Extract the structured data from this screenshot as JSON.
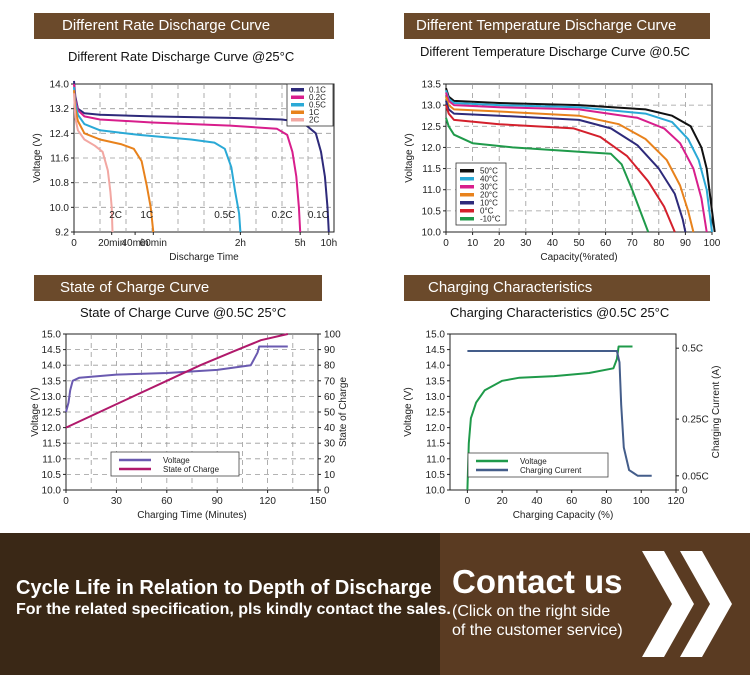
{
  "colors": {
    "header_bg": "#6b4a2b",
    "grid": "#9a9a9a",
    "footer_bg": "#5a3b22",
    "footer_dark": "#3a2816"
  },
  "panels": {
    "rate": {
      "header": "Different Rate Discharge Curve",
      "title": "Different Rate Discharge Curve @25°C"
    },
    "temp": {
      "header": "Different Temperature Discharge Curve",
      "title": "Different Temperature Discharge Curve @0.5C"
    },
    "soc": {
      "header": "State of Charge Curve",
      "title": "State of Charge Curve @0.5C 25°C"
    },
    "charge": {
      "header": "Charging Characteristics",
      "title": "Charging Characteristics @0.5C 25°C"
    }
  },
  "chart_data": [
    {
      "type": "line",
      "title": "Different Rate Discharge Curve @25°C",
      "xlabel": "Discharge Time",
      "ylabel": "Voltage (V)",
      "ylim": [
        9.2,
        14.0
      ],
      "yticks": [
        "14.0",
        "13.2",
        "12.4",
        "11.6",
        "10.8",
        "10.0",
        "9.2"
      ],
      "yticks_values": [
        14.0,
        13.2,
        12.4,
        11.6,
        10.8,
        10.0,
        9.2
      ],
      "xticks": [
        "0",
        "20min",
        "40min",
        "60min",
        "2h",
        "5h",
        "10h"
      ],
      "xlim": [
        0,
        100
      ],
      "xticks_values": [
        0,
        14.5,
        23.5,
        30.5,
        64,
        87,
        98
      ],
      "curve_labels": [
        {
          "text": "2C",
          "x": 16,
          "y": 9.65
        },
        {
          "text": "1C",
          "x": 28,
          "y": 9.65
        },
        {
          "text": "0.5C",
          "x": 58,
          "y": 9.65
        },
        {
          "text": "0.2C",
          "x": 80,
          "y": 9.65
        },
        {
          "text": "0.1C",
          "x": 94,
          "y": 9.65
        }
      ],
      "series": [
        {
          "name": "0.1C",
          "color": "#2e2a7a",
          "points": [
            [
              0,
              14.1
            ],
            [
              0.5,
              13.6
            ],
            [
              1.5,
              13.2
            ],
            [
              4,
              13.05
            ],
            [
              10,
              13.0
            ],
            [
              30,
              12.95
            ],
            [
              60,
              12.9
            ],
            [
              80,
              12.85
            ],
            [
              88,
              12.75
            ],
            [
              93,
              12.4
            ],
            [
              95,
              11.8
            ],
            [
              96.5,
              11.0
            ],
            [
              97.5,
              10.0
            ],
            [
              98,
              9.2
            ]
          ]
        },
        {
          "name": "0.2C",
          "color": "#d81e8c",
          "points": [
            [
              0,
              14.0
            ],
            [
              0.5,
              13.5
            ],
            [
              1.5,
              13.15
            ],
            [
              4,
              12.95
            ],
            [
              10,
              12.85
            ],
            [
              30,
              12.75
            ],
            [
              60,
              12.65
            ],
            [
              78,
              12.55
            ],
            [
              82,
              12.35
            ],
            [
              84,
              11.8
            ],
            [
              85.5,
              11.0
            ],
            [
              86.5,
              10.0
            ],
            [
              87,
              9.2
            ]
          ]
        },
        {
          "name": "0.5C",
          "color": "#2aa9d6",
          "points": [
            [
              0,
              13.9
            ],
            [
              0.5,
              13.4
            ],
            [
              1.5,
              13.0
            ],
            [
              4,
              12.7
            ],
            [
              10,
              12.5
            ],
            [
              25,
              12.35
            ],
            [
              45,
              12.2
            ],
            [
              54,
              12.1
            ],
            [
              58,
              11.9
            ],
            [
              60.5,
              11.3
            ],
            [
              62,
              10.5
            ],
            [
              63.5,
              9.8
            ],
            [
              64,
              9.2
            ]
          ]
        },
        {
          "name": "1C",
          "color": "#e8821c",
          "points": [
            [
              0,
              13.8
            ],
            [
              0.5,
              13.2
            ],
            [
              1.5,
              12.8
            ],
            [
              4,
              12.4
            ],
            [
              10,
              12.2
            ],
            [
              18,
              12.05
            ],
            [
              23,
              11.9
            ],
            [
              26,
              11.5
            ],
            [
              28,
              10.7
            ],
            [
              29.5,
              10.0
            ],
            [
              30.5,
              9.2
            ]
          ]
        },
        {
          "name": "2C",
          "color": "#f2a7a2",
          "points": [
            [
              0,
              13.7
            ],
            [
              0.5,
              12.9
            ],
            [
              1.5,
              12.5
            ],
            [
              4,
              12.2
            ],
            [
              8,
              12.0
            ],
            [
              11,
              11.8
            ],
            [
              13,
              11.2
            ],
            [
              14,
              10.5
            ],
            [
              14.5,
              10.0
            ],
            [
              14.8,
              9.2
            ]
          ]
        }
      ]
    },
    {
      "type": "line",
      "title": "Different Temperature Discharge Curve @0.5C",
      "xlabel": "Capacity(%rated)",
      "ylabel": "Voltage (V)",
      "ylim": [
        10.0,
        13.5
      ],
      "xlim": [
        0,
        100
      ],
      "yticks": [
        "13.5",
        "13.0",
        "12.5",
        "12.0",
        "11.5",
        "11.0",
        "10.5",
        "10.0"
      ],
      "yticks_values": [
        13.5,
        13.0,
        12.5,
        12.0,
        11.5,
        11.0,
        10.5,
        10.0
      ],
      "xticks": [
        "0",
        "10",
        "20",
        "30",
        "40",
        "50",
        "60",
        "70",
        "80",
        "90",
        "100"
      ],
      "xticks_values": [
        0,
        10,
        20,
        30,
        40,
        50,
        60,
        70,
        80,
        90,
        100
      ],
      "series": [
        {
          "name": "50°C",
          "color": "#111111",
          "points": [
            [
              0,
              13.4
            ],
            [
              1,
              13.2
            ],
            [
              3,
              13.1
            ],
            [
              20,
              13.05
            ],
            [
              50,
              13.0
            ],
            [
              75,
              12.9
            ],
            [
              85,
              12.75
            ],
            [
              92,
              12.5
            ],
            [
              96,
              12.0
            ],
            [
              98,
              11.5
            ],
            [
              100,
              10.5
            ],
            [
              101,
              10.0
            ]
          ]
        },
        {
          "name": "40°C",
          "color": "#2aa9d6",
          "points": [
            [
              0,
              13.35
            ],
            [
              1,
              13.15
            ],
            [
              3,
              13.05
            ],
            [
              20,
              13.0
            ],
            [
              50,
              12.95
            ],
            [
              75,
              12.8
            ],
            [
              85,
              12.6
            ],
            [
              91,
              12.2
            ],
            [
              95,
              11.7
            ],
            [
              98,
              11.0
            ],
            [
              100,
              10.0
            ]
          ]
        },
        {
          "name": "30°C",
          "color": "#d81e8c",
          "points": [
            [
              0,
              13.3
            ],
            [
              1,
              13.1
            ],
            [
              3,
              13.0
            ],
            [
              20,
              12.95
            ],
            [
              50,
              12.9
            ],
            [
              72,
              12.7
            ],
            [
              82,
              12.45
            ],
            [
              88,
              12.1
            ],
            [
              93,
              11.5
            ],
            [
              96,
              10.8
            ],
            [
              98,
              10.0
            ]
          ]
        },
        {
          "name": "20°C",
          "color": "#e8821c",
          "points": [
            [
              0,
              13.2
            ],
            [
              1,
              13.0
            ],
            [
              3,
              12.9
            ],
            [
              20,
              12.85
            ],
            [
              50,
              12.75
            ],
            [
              65,
              12.55
            ],
            [
              75,
              12.2
            ],
            [
              83,
              11.7
            ],
            [
              88,
              11.1
            ],
            [
              91,
              10.5
            ],
            [
              93,
              10.0
            ]
          ]
        },
        {
          "name": "10°C",
          "color": "#2e2a7a",
          "points": [
            [
              0,
              13.1
            ],
            [
              1,
              12.9
            ],
            [
              3,
              12.8
            ],
            [
              20,
              12.75
            ],
            [
              50,
              12.65
            ],
            [
              62,
              12.45
            ],
            [
              72,
              12.05
            ],
            [
              80,
              11.5
            ],
            [
              86,
              10.9
            ],
            [
              89,
              10.3
            ],
            [
              90,
              10.0
            ]
          ]
        },
        {
          "name": "0°C",
          "color": "#d4202c",
          "points": [
            [
              0,
              13.0
            ],
            [
              1,
              12.8
            ],
            [
              3,
              12.65
            ],
            [
              20,
              12.55
            ],
            [
              48,
              12.45
            ],
            [
              58,
              12.25
            ],
            [
              68,
              11.8
            ],
            [
              76,
              11.2
            ],
            [
              82,
              10.6
            ],
            [
              86,
              10.0
            ]
          ]
        },
        {
          "name": "-10°C",
          "color": "#1f9a4a",
          "points": [
            [
              0,
              12.7
            ],
            [
              1,
              12.5
            ],
            [
              3,
              12.3
            ],
            [
              10,
              12.1
            ],
            [
              25,
              12.0
            ],
            [
              50,
              11.9
            ],
            [
              62,
              11.85
            ],
            [
              66,
              11.6
            ],
            [
              70,
              11.0
            ],
            [
              73,
              10.5
            ],
            [
              76,
              10.0
            ]
          ]
        }
      ]
    },
    {
      "type": "line",
      "title": "State of Charge Curve @0.5C 25°C",
      "xlabel": "Charging Time (Minutes)",
      "ylabel": "Voltage (V)",
      "y2label": "State of Charge",
      "ylim": [
        10.0,
        15.0
      ],
      "y2lim": [
        0,
        100
      ],
      "xlim": [
        0,
        150
      ],
      "yticks": [
        "15.0",
        "14.5",
        "14.0",
        "13.5",
        "13.0",
        "12.5",
        "12.0",
        "11.5",
        "11.0",
        "10.5",
        "10.0"
      ],
      "yticks_values": [
        15.0,
        14.5,
        14.0,
        13.5,
        13.0,
        12.5,
        12.0,
        11.5,
        11.0,
        10.5,
        10.0
      ],
      "y2ticks": [
        "100",
        "90",
        "80",
        "70",
        "60",
        "50",
        "40",
        "30",
        "20",
        "10",
        "0"
      ],
      "y2ticks_values": [
        100,
        90,
        80,
        70,
        60,
        50,
        40,
        30,
        20,
        10,
        0
      ],
      "xticks": [
        "0",
        "30",
        "60",
        "90",
        "120",
        "150"
      ],
      "xticks_values": [
        0,
        30,
        60,
        90,
        120,
        150
      ],
      "legend": [
        "Voltage",
        "State of Charge"
      ],
      "series": [
        {
          "name": "Voltage",
          "color": "#6a5ab0",
          "axis": "left",
          "points": [
            [
              0,
              12.5
            ],
            [
              1.5,
              12.8
            ],
            [
              2.5,
              13.2
            ],
            [
              4,
              13.5
            ],
            [
              8,
              13.6
            ],
            [
              30,
              13.7
            ],
            [
              60,
              13.75
            ],
            [
              90,
              13.85
            ],
            [
              110,
              14.0
            ],
            [
              114,
              14.4
            ],
            [
              115,
              14.6
            ],
            [
              132,
              14.6
            ]
          ]
        },
        {
          "name": "State of Charge",
          "color": "#b0196b",
          "axis": "right",
          "points": [
            [
              0,
              40
            ],
            [
              20,
              50
            ],
            [
              40,
              60
            ],
            [
              60,
              70
            ],
            [
              80,
              80
            ],
            [
              100,
              89
            ],
            [
              116,
              96
            ],
            [
              132,
              100
            ]
          ]
        }
      ]
    },
    {
      "type": "line",
      "title": "Charging Characteristics @0.5C 25°C",
      "xlabel": "Charging Capacity (%)",
      "ylabel": "Voltage (V)",
      "y2label": "Charging Current (A)",
      "ylim": [
        10.0,
        15.0
      ],
      "xlim": [
        -10,
        120
      ],
      "y2lim": [
        0,
        0.55
      ],
      "yticks": [
        "15.0",
        "14.5",
        "14.0",
        "13.5",
        "13.0",
        "12.5",
        "12.0",
        "11.5",
        "11.0",
        "10.5",
        "10.0"
      ],
      "yticks_values": [
        15.0,
        14.5,
        14.0,
        13.5,
        13.0,
        12.5,
        12.0,
        11.5,
        11.0,
        10.5,
        10.0
      ],
      "y2ticks": [
        "0.5C",
        "0.25C",
        "0.05C",
        "0"
      ],
      "y2ticks_values": [
        0.5,
        0.25,
        0.05,
        0
      ],
      "xticks": [
        "0",
        "20",
        "40",
        "60",
        "80",
        "100",
        "120"
      ],
      "xticks_values": [
        0,
        20,
        40,
        60,
        80,
        100,
        120
      ],
      "legend": [
        "Voltage",
        "Charging Current"
      ],
      "series": [
        {
          "name": "Voltage",
          "color": "#1f9a4a",
          "axis": "left",
          "points": [
            [
              0,
              10.0
            ],
            [
              0.8,
              11.5
            ],
            [
              2,
              12.3
            ],
            [
              5,
              12.8
            ],
            [
              10,
              13.2
            ],
            [
              20,
              13.5
            ],
            [
              30,
              13.6
            ],
            [
              50,
              13.65
            ],
            [
              70,
              13.75
            ],
            [
              84,
              13.9
            ],
            [
              86,
              14.2
            ],
            [
              87,
              14.6
            ],
            [
              95,
              14.6
            ]
          ]
        },
        {
          "name": "Charging Current",
          "color": "#445d8a",
          "axis": "right",
          "points": [
            [
              0,
              0.49
            ],
            [
              60,
              0.49
            ],
            [
              86,
              0.49
            ],
            [
              87.5,
              0.45
            ],
            [
              88.5,
              0.3
            ],
            [
              90,
              0.15
            ],
            [
              93,
              0.07
            ],
            [
              98,
              0.05
            ],
            [
              106,
              0.05
            ]
          ]
        }
      ]
    }
  ],
  "footer": {
    "cycle_title": "Cycle Life in Relation to Depth of Discharge",
    "cycle_sub": "For the related specification, pls kindly contact the sales.",
    "contact": "Contact us",
    "contact_line1": "(Click on the right side",
    "contact_line2": "of the customer service)"
  }
}
